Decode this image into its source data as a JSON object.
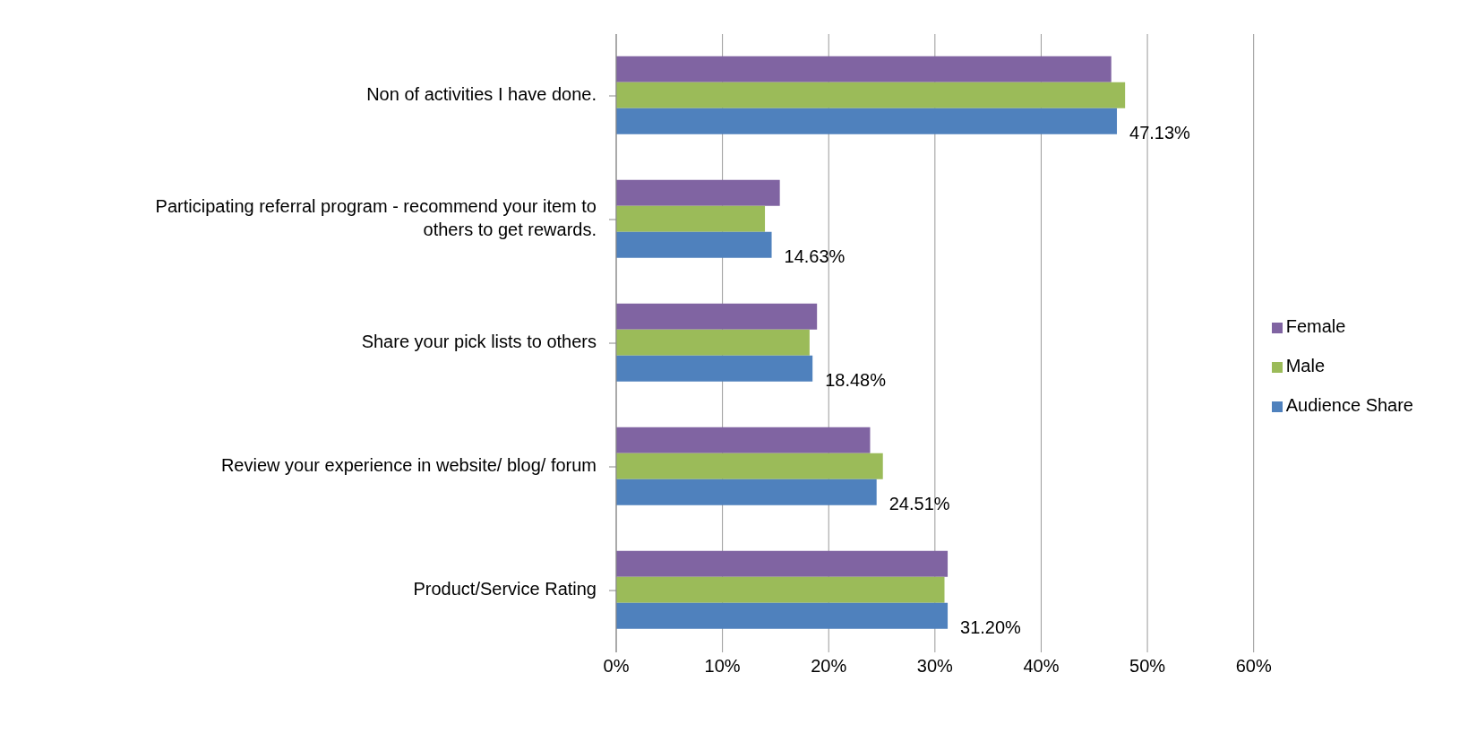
{
  "chart_data": {
    "type": "bar",
    "orientation": "horizontal",
    "categories": [
      "Non of activities I have done.",
      "Participating referral program - recommend your item to others to get rewards.",
      "Share your pick lists to others",
      "Review your experience in website/ blog/ forum",
      "Product/Service Rating"
    ],
    "series": [
      {
        "name": "Female",
        "color": "#8064a2",
        "values": [
          46.6,
          15.4,
          18.9,
          23.9,
          31.2
        ]
      },
      {
        "name": "Male",
        "color": "#9bbb59",
        "values": [
          47.9,
          14.0,
          18.2,
          25.1,
          30.9
        ]
      },
      {
        "name": "Audience Share",
        "color": "#4f81bd",
        "values": [
          47.13,
          14.63,
          18.48,
          24.51,
          31.2
        ],
        "value_labels": [
          "47.13%",
          "14.63%",
          "18.48%",
          "24.51%",
          "31.20%"
        ]
      }
    ],
    "xlim": [
      0,
      60
    ],
    "xticks": [
      {
        "value": 0,
        "label": "0%"
      },
      {
        "value": 10,
        "label": "10%"
      },
      {
        "value": 20,
        "label": "20%"
      },
      {
        "value": 30,
        "label": "30%"
      },
      {
        "value": 40,
        "label": "40%"
      },
      {
        "value": 50,
        "label": "50%"
      },
      {
        "value": 60,
        "label": "60%"
      }
    ],
    "grid": "x",
    "legend": "right"
  }
}
